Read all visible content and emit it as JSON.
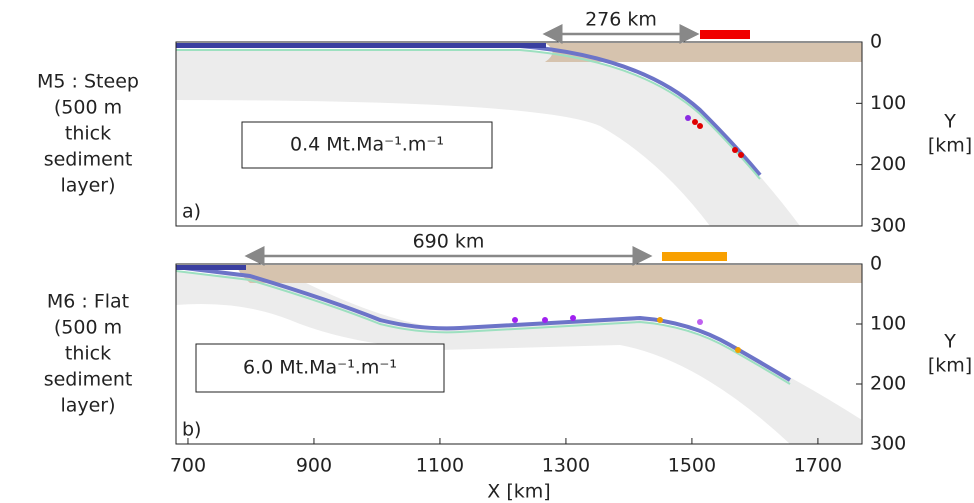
{
  "x_axis": {
    "label": "X [km]",
    "xlim": [
      681,
      1770
    ],
    "ticks": [
      700,
      900,
      1100,
      1300,
      1500,
      1700
    ]
  },
  "panels": [
    {
      "tag": "a)",
      "model_lines": [
        "M5 : Steep",
        "(500 m",
        "thick",
        "sediment",
        "layer)"
      ],
      "rate": "0.4 Mt.Ma⁻¹.m⁻¹",
      "distance": "276 km",
      "y_axis": {
        "label_lines": [
          "Y",
          "[km]"
        ],
        "ylim": [
          0,
          300
        ],
        "ticks": [
          0,
          100,
          200,
          300
        ]
      }
    },
    {
      "tag": "b)",
      "model_lines": [
        "M6 : Flat",
        "(500 m",
        "thick",
        "sediment",
        "layer)"
      ],
      "rate": "6.0 Mt.Ma⁻¹.m⁻¹",
      "distance": "690 km",
      "y_axis": {
        "label_lines": [
          "Y",
          "[km]"
        ],
        "ylim": [
          0,
          300
        ],
        "ticks": [
          0,
          100,
          200,
          300
        ]
      }
    }
  ]
}
